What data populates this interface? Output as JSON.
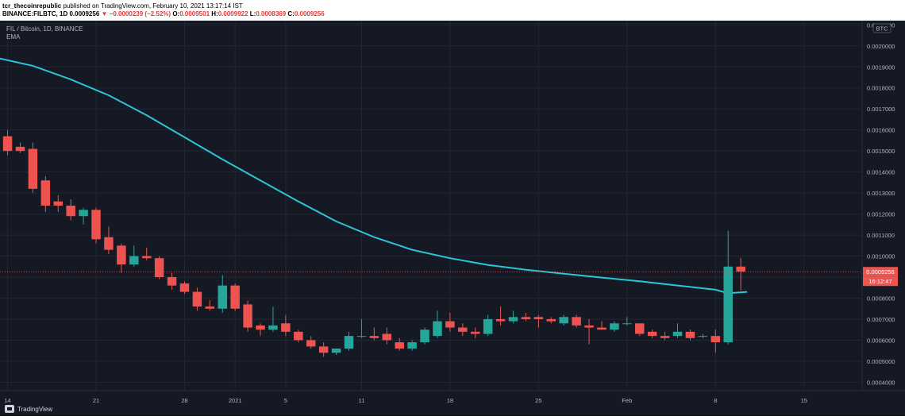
{
  "header": {
    "author": "tcr_thecoinrepublic",
    "published_text": " published on TradingView.com, February 10, 2021 13:17:14 IST",
    "symbol_line_prefix": "BINANCE:FILBTC, 1D",
    "last_price": "0.0009256",
    "change_arrow": "▼",
    "change_text": "−0.0000239 (−2.52%)",
    "o_label": "O:",
    "o_value": "0.0009501",
    "h_label": "H:",
    "h_value": "0.0009922",
    "l_label": "L:",
    "l_value": "0.0008369",
    "c_label": "C:",
    "c_value": "0.0009256"
  },
  "legend": {
    "title": "FIL / Bitcoin, 1D, BINANCE",
    "indicator": "EMA"
  },
  "price_axis": {
    "currency_badge": "BTC",
    "last_price_label": "0.0009256",
    "countdown_label": "16:12:47"
  },
  "footer": {
    "brand": "TradingView"
  },
  "colors": {
    "background": "#151924",
    "up": "#26a69a",
    "down": "#ef5350",
    "ema": "#2ec4d6",
    "grid": "#232733",
    "axis_text": "#b2b5be",
    "last_price_line": "#ef5350"
  },
  "chart_data": {
    "type": "candlestick",
    "title": "FIL / Bitcoin, 1D, BINANCE",
    "y_ticks": [
      0.0004,
      0.0005,
      0.0006,
      0.0007,
      0.0008,
      0.0009,
      0.001,
      0.0011,
      0.0012,
      0.0013,
      0.0014,
      0.0015,
      0.0016,
      0.0017,
      0.0018,
      0.0019,
      0.002,
      0.0021
    ],
    "y_tick_labels": [
      "0.0004000",
      "0.0005000",
      "0.0006000",
      "0.0007000",
      "0.0008000",
      "0.0009000",
      "0.0010000",
      "0.0011000",
      "0.0012000",
      "0.0013000",
      "0.0014000",
      "0.0015000",
      "0.0016000",
      "0.0017000",
      "0.0018000",
      "0.0019000",
      "0.0020000",
      "0.0021000"
    ],
    "ylim": [
      0.00036,
      0.00212
    ],
    "x_ticks": [
      {
        "label": "14",
        "index": 0
      },
      {
        "label": "21",
        "index": 7
      },
      {
        "label": "28",
        "index": 14
      },
      {
        "label": "2021",
        "index": 18
      },
      {
        "label": "5",
        "index": 22
      },
      {
        "label": "11",
        "index": 28
      },
      {
        "label": "18",
        "index": 35
      },
      {
        "label": "25",
        "index": 42
      },
      {
        "label": "Feb",
        "index": 49
      },
      {
        "label": "8",
        "index": 56
      },
      {
        "label": "15",
        "index": 63
      }
    ],
    "x_domain": [
      -0.6,
      67.6
    ],
    "candles": [
      {
        "o": 0.00157,
        "h": 0.0016,
        "l": 0.00148,
        "c": 0.0015
      },
      {
        "o": 0.00152,
        "h": 0.00154,
        "l": 0.00149,
        "c": 0.0015
      },
      {
        "o": 0.00151,
        "h": 0.00154,
        "l": 0.0013,
        "c": 0.00132
      },
      {
        "o": 0.00136,
        "h": 0.00138,
        "l": 0.00121,
        "c": 0.00124
      },
      {
        "o": 0.00126,
        "h": 0.00129,
        "l": 0.00121,
        "c": 0.00124
      },
      {
        "o": 0.00124,
        "h": 0.00127,
        "l": 0.00117,
        "c": 0.00119
      },
      {
        "o": 0.00119,
        "h": 0.00123,
        "l": 0.00115,
        "c": 0.00122
      },
      {
        "o": 0.00122,
        "h": 0.00123,
        "l": 0.00106,
        "c": 0.00108
      },
      {
        "o": 0.00109,
        "h": 0.00114,
        "l": 0.00101,
        "c": 0.00103
      },
      {
        "o": 0.00105,
        "h": 0.00106,
        "l": 0.00092,
        "c": 0.00096
      },
      {
        "o": 0.00096,
        "h": 0.00105,
        "l": 0.00095,
        "c": 0.001
      },
      {
        "o": 0.001,
        "h": 0.00104,
        "l": 0.00098,
        "c": 0.00099
      },
      {
        "o": 0.00099,
        "h": 0.001,
        "l": 0.00089,
        "c": 0.0009
      },
      {
        "o": 0.0009,
        "h": 0.00092,
        "l": 0.00084,
        "c": 0.00086
      },
      {
        "o": 0.00087,
        "h": 0.00088,
        "l": 0.00082,
        "c": 0.00083
      },
      {
        "o": 0.00083,
        "h": 0.00085,
        "l": 0.00074,
        "c": 0.00076
      },
      {
        "o": 0.00076,
        "h": 0.00079,
        "l": 0.00074,
        "c": 0.00075
      },
      {
        "o": 0.00075,
        "h": 0.00091,
        "l": 0.00073,
        "c": 0.00086
      },
      {
        "o": 0.00086,
        "h": 0.00087,
        "l": 0.00074,
        "c": 0.00075
      },
      {
        "o": 0.00077,
        "h": 0.00079,
        "l": 0.00064,
        "c": 0.00066
      },
      {
        "o": 0.00067,
        "h": 0.00068,
        "l": 0.00062,
        "c": 0.00065
      },
      {
        "o": 0.00065,
        "h": 0.00076,
        "l": 0.00064,
        "c": 0.00067
      },
      {
        "o": 0.00068,
        "h": 0.00072,
        "l": 0.00062,
        "c": 0.00064
      },
      {
        "o": 0.00064,
        "h": 0.00065,
        "l": 0.00059,
        "c": 0.0006
      },
      {
        "o": 0.0006,
        "h": 0.00062,
        "l": 0.00056,
        "c": 0.00057
      },
      {
        "o": 0.00057,
        "h": 0.00059,
        "l": 0.00052,
        "c": 0.00054
      },
      {
        "o": 0.00054,
        "h": 0.00056,
        "l": 0.00053,
        "c": 0.00056
      },
      {
        "o": 0.00056,
        "h": 0.00064,
        "l": 0.00055,
        "c": 0.00062
      },
      {
        "o": 0.00062,
        "h": 0.0007,
        "l": 0.00061,
        "c": 0.00062
      },
      {
        "o": 0.00062,
        "h": 0.00066,
        "l": 0.0006,
        "c": 0.00061
      },
      {
        "o": 0.00063,
        "h": 0.00066,
        "l": 0.00058,
        "c": 0.0006
      },
      {
        "o": 0.00059,
        "h": 0.00061,
        "l": 0.00055,
        "c": 0.00056
      },
      {
        "o": 0.00056,
        "h": 0.0006,
        "l": 0.00055,
        "c": 0.00059
      },
      {
        "o": 0.00059,
        "h": 0.00066,
        "l": 0.00058,
        "c": 0.00065
      },
      {
        "o": 0.00062,
        "h": 0.00074,
        "l": 0.00061,
        "c": 0.00069
      },
      {
        "o": 0.00069,
        "h": 0.00073,
        "l": 0.00064,
        "c": 0.00066
      },
      {
        "o": 0.00066,
        "h": 0.00068,
        "l": 0.00062,
        "c": 0.00064
      },
      {
        "o": 0.00064,
        "h": 0.00066,
        "l": 0.00061,
        "c": 0.00063
      },
      {
        "o": 0.00063,
        "h": 0.00072,
        "l": 0.00062,
        "c": 0.0007
      },
      {
        "o": 0.0007,
        "h": 0.00076,
        "l": 0.00067,
        "c": 0.00069
      },
      {
        "o": 0.00069,
        "h": 0.00074,
        "l": 0.00068,
        "c": 0.00071
      },
      {
        "o": 0.00071,
        "h": 0.00073,
        "l": 0.00069,
        "c": 0.0007
      },
      {
        "o": 0.00071,
        "h": 0.00072,
        "l": 0.00066,
        "c": 0.0007
      },
      {
        "o": 0.0007,
        "h": 0.00071,
        "l": 0.00068,
        "c": 0.00069
      },
      {
        "o": 0.00068,
        "h": 0.00072,
        "l": 0.00067,
        "c": 0.00071
      },
      {
        "o": 0.00071,
        "h": 0.00072,
        "l": 0.00066,
        "c": 0.00067
      },
      {
        "o": 0.00067,
        "h": 0.0007,
        "l": 0.00058,
        "c": 0.00066
      },
      {
        "o": 0.00066,
        "h": 0.00069,
        "l": 0.00065,
        "c": 0.00065
      },
      {
        "o": 0.00065,
        "h": 0.00069,
        "l": 0.00064,
        "c": 0.00068
      },
      {
        "o": 0.00068,
        "h": 0.00071,
        "l": 0.00067,
        "c": 0.00068
      },
      {
        "o": 0.00068,
        "h": 0.00068,
        "l": 0.00062,
        "c": 0.00063
      },
      {
        "o": 0.00064,
        "h": 0.00065,
        "l": 0.00061,
        "c": 0.00062
      },
      {
        "o": 0.00062,
        "h": 0.00064,
        "l": 0.0006,
        "c": 0.00061
      },
      {
        "o": 0.00062,
        "h": 0.00068,
        "l": 0.00061,
        "c": 0.00064
      },
      {
        "o": 0.00064,
        "h": 0.00065,
        "l": 0.0006,
        "c": 0.00061
      },
      {
        "o": 0.00062,
        "h": 0.00063,
        "l": 0.00061,
        "c": 0.00062
      },
      {
        "o": 0.00062,
        "h": 0.00065,
        "l": 0.00054,
        "c": 0.00059
      },
      {
        "o": 0.00059,
        "h": 0.00112,
        "l": 0.00058,
        "c": 0.00095
      },
      {
        "o": 0.00095,
        "h": 0.000992,
        "l": 0.000837,
        "c": 0.000926
      }
    ],
    "ema": {
      "name": "EMA",
      "points": [
        {
          "i": -0.6,
          "v": 0.00194
        },
        {
          "i": 2,
          "v": 0.001905
        },
        {
          "i": 5,
          "v": 0.00184
        },
        {
          "i": 8,
          "v": 0.001765
        },
        {
          "i": 11,
          "v": 0.00167
        },
        {
          "i": 14,
          "v": 0.001565
        },
        {
          "i": 17,
          "v": 0.00146
        },
        {
          "i": 20,
          "v": 0.00136
        },
        {
          "i": 23,
          "v": 0.00126
        },
        {
          "i": 26,
          "v": 0.001165
        },
        {
          "i": 29,
          "v": 0.00109
        },
        {
          "i": 32,
          "v": 0.00103
        },
        {
          "i": 35,
          "v": 0.00099
        },
        {
          "i": 38,
          "v": 0.000958
        },
        {
          "i": 41,
          "v": 0.000935
        },
        {
          "i": 44,
          "v": 0.000916
        },
        {
          "i": 47,
          "v": 0.000898
        },
        {
          "i": 50,
          "v": 0.00088
        },
        {
          "i": 53,
          "v": 0.00086
        },
        {
          "i": 56,
          "v": 0.00084
        },
        {
          "i": 57,
          "v": 0.000823
        },
        {
          "i": 58.5,
          "v": 0.00083
        }
      ]
    },
    "last_price": 0.0009256
  }
}
